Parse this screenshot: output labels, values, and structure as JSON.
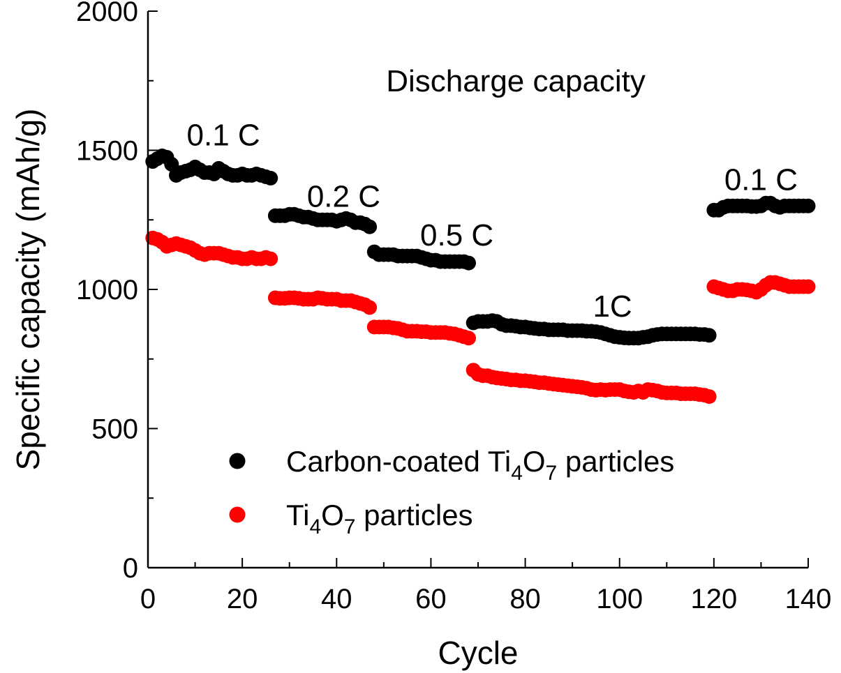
{
  "chart_data": {
    "type": "scatter",
    "title": "",
    "xlabel": "Cycle",
    "ylabel": "Specific capacity (mAh/g)",
    "xlim": [
      0,
      140
    ],
    "ylim": [
      0,
      2000
    ],
    "xticks": [
      0,
      20,
      40,
      60,
      80,
      100,
      120,
      140
    ],
    "yticks": [
      0,
      500,
      1000,
      1500,
      2000
    ],
    "xtick_labels": [
      "0",
      "20",
      "40",
      "60",
      "80",
      "100",
      "120",
      "140"
    ],
    "ytick_labels": [
      "0",
      "500",
      "1000",
      "1500",
      "2000"
    ],
    "grid": false,
    "legend_position": "bottom-left",
    "series": [
      {
        "key": "coated",
        "name_main": "Carbon-coated Ti",
        "name_sub1": "4",
        "name_mid": "O",
        "name_sub2": "7",
        "name_tail": " particles",
        "color": "#000000",
        "points": [
          [
            1,
            1460
          ],
          [
            2,
            1470
          ],
          [
            3,
            1480
          ],
          [
            4,
            1475
          ],
          [
            5,
            1450
          ],
          [
            6,
            1410
          ],
          [
            7,
            1420
          ],
          [
            8,
            1425
          ],
          [
            9,
            1430
          ],
          [
            10,
            1440
          ],
          [
            11,
            1430
          ],
          [
            12,
            1420
          ],
          [
            13,
            1420
          ],
          [
            14,
            1415
          ],
          [
            15,
            1435
          ],
          [
            16,
            1425
          ],
          [
            17,
            1415
          ],
          [
            18,
            1410
          ],
          [
            19,
            1410
          ],
          [
            20,
            1415
          ],
          [
            21,
            1410
          ],
          [
            22,
            1410
          ],
          [
            23,
            1415
          ],
          [
            24,
            1410
          ],
          [
            25,
            1405
          ],
          [
            26,
            1400
          ],
          [
            27,
            1265
          ],
          [
            28,
            1265
          ],
          [
            29,
            1265
          ],
          [
            30,
            1270
          ],
          [
            31,
            1270
          ],
          [
            32,
            1265
          ],
          [
            33,
            1260
          ],
          [
            34,
            1260
          ],
          [
            35,
            1255
          ],
          [
            36,
            1250
          ],
          [
            37,
            1250
          ],
          [
            38,
            1250
          ],
          [
            39,
            1250
          ],
          [
            40,
            1245
          ],
          [
            41,
            1250
          ],
          [
            42,
            1255
          ],
          [
            43,
            1250
          ],
          [
            44,
            1240
          ],
          [
            45,
            1240
          ],
          [
            46,
            1235
          ],
          [
            47,
            1225
          ],
          [
            48,
            1135
          ],
          [
            49,
            1125
          ],
          [
            50,
            1125
          ],
          [
            51,
            1125
          ],
          [
            52,
            1125
          ],
          [
            53,
            1120
          ],
          [
            54,
            1120
          ],
          [
            55,
            1120
          ],
          [
            56,
            1120
          ],
          [
            57,
            1120
          ],
          [
            58,
            1115
          ],
          [
            59,
            1110
          ],
          [
            60,
            1105
          ],
          [
            61,
            1105
          ],
          [
            62,
            1100
          ],
          [
            63,
            1100
          ],
          [
            64,
            1100
          ],
          [
            65,
            1100
          ],
          [
            66,
            1100
          ],
          [
            67,
            1100
          ],
          [
            68,
            1095
          ],
          [
            69,
            880
          ],
          [
            70,
            885
          ],
          [
            71,
            885
          ],
          [
            72,
            885
          ],
          [
            73,
            888
          ],
          [
            74,
            885
          ],
          [
            75,
            875
          ],
          [
            76,
            870
          ],
          [
            77,
            870
          ],
          [
            78,
            868
          ],
          [
            79,
            865
          ],
          [
            80,
            865
          ],
          [
            81,
            862
          ],
          [
            82,
            860
          ],
          [
            83,
            858
          ],
          [
            84,
            858
          ],
          [
            85,
            855
          ],
          [
            86,
            855
          ],
          [
            87,
            855
          ],
          [
            88,
            855
          ],
          [
            89,
            852
          ],
          [
            90,
            852
          ],
          [
            91,
            852
          ],
          [
            92,
            852
          ],
          [
            93,
            850
          ],
          [
            94,
            850
          ],
          [
            95,
            848
          ],
          [
            96,
            845
          ],
          [
            97,
            840
          ],
          [
            98,
            835
          ],
          [
            99,
            830
          ],
          [
            100,
            828
          ],
          [
            101,
            826
          ],
          [
            102,
            825
          ],
          [
            103,
            825
          ],
          [
            104,
            825
          ],
          [
            105,
            828
          ],
          [
            106,
            830
          ],
          [
            107,
            835
          ],
          [
            108,
            838
          ],
          [
            109,
            840
          ],
          [
            110,
            840
          ],
          [
            111,
            840
          ],
          [
            112,
            840
          ],
          [
            113,
            840
          ],
          [
            114,
            840
          ],
          [
            115,
            840
          ],
          [
            116,
            840
          ],
          [
            117,
            838
          ],
          [
            118,
            838
          ],
          [
            119,
            835
          ],
          [
            120,
            1285
          ],
          [
            121,
            1285
          ],
          [
            122,
            1295
          ],
          [
            123,
            1300
          ],
          [
            124,
            1300
          ],
          [
            125,
            1300
          ],
          [
            126,
            1300
          ],
          [
            127,
            1300
          ],
          [
            128,
            1298
          ],
          [
            129,
            1298
          ],
          [
            130,
            1300
          ],
          [
            131,
            1310
          ],
          [
            132,
            1310
          ],
          [
            133,
            1300
          ],
          [
            134,
            1295
          ],
          [
            135,
            1300
          ],
          [
            136,
            1300
          ],
          [
            137,
            1300
          ],
          [
            138,
            1300
          ],
          [
            139,
            1300
          ],
          [
            140,
            1300
          ]
        ]
      },
      {
        "key": "bare",
        "name_main": "Ti",
        "name_sub1": "4",
        "name_mid": "O",
        "name_sub2": "7",
        "name_tail": " particles",
        "color": "#ff0000",
        "points": [
          [
            1,
            1185
          ],
          [
            2,
            1180
          ],
          [
            3,
            1170
          ],
          [
            4,
            1155
          ],
          [
            5,
            1160
          ],
          [
            6,
            1165
          ],
          [
            7,
            1160
          ],
          [
            8,
            1155
          ],
          [
            9,
            1150
          ],
          [
            10,
            1140
          ],
          [
            11,
            1130
          ],
          [
            12,
            1125
          ],
          [
            13,
            1130
          ],
          [
            14,
            1130
          ],
          [
            15,
            1130
          ],
          [
            16,
            1125
          ],
          [
            17,
            1120
          ],
          [
            18,
            1115
          ],
          [
            19,
            1115
          ],
          [
            20,
            1110
          ],
          [
            21,
            1110
          ],
          [
            22,
            1115
          ],
          [
            23,
            1110
          ],
          [
            24,
            1110
          ],
          [
            25,
            1115
          ],
          [
            26,
            1110
          ],
          [
            27,
            970
          ],
          [
            28,
            968
          ],
          [
            29,
            968
          ],
          [
            30,
            970
          ],
          [
            31,
            970
          ],
          [
            32,
            968
          ],
          [
            33,
            965
          ],
          [
            34,
            965
          ],
          [
            35,
            965
          ],
          [
            36,
            970
          ],
          [
            37,
            968
          ],
          [
            38,
            965
          ],
          [
            39,
            965
          ],
          [
            40,
            965
          ],
          [
            41,
            960
          ],
          [
            42,
            960
          ],
          [
            43,
            960
          ],
          [
            44,
            955
          ],
          [
            45,
            950
          ],
          [
            46,
            945
          ],
          [
            47,
            935
          ],
          [
            48,
            865
          ],
          [
            49,
            865
          ],
          [
            50,
            865
          ],
          [
            51,
            865
          ],
          [
            52,
            862
          ],
          [
            53,
            860
          ],
          [
            54,
            855
          ],
          [
            55,
            850
          ],
          [
            56,
            850
          ],
          [
            57,
            850
          ],
          [
            58,
            848
          ],
          [
            59,
            848
          ],
          [
            60,
            845
          ],
          [
            61,
            845
          ],
          [
            62,
            845
          ],
          [
            63,
            845
          ],
          [
            64,
            842
          ],
          [
            65,
            840
          ],
          [
            66,
            835
          ],
          [
            67,
            830
          ],
          [
            68,
            825
          ],
          [
            69,
            710
          ],
          [
            70,
            695
          ],
          [
            71,
            690
          ],
          [
            72,
            690
          ],
          [
            73,
            685
          ],
          [
            74,
            682
          ],
          [
            75,
            680
          ],
          [
            76,
            678
          ],
          [
            77,
            675
          ],
          [
            78,
            675
          ],
          [
            79,
            672
          ],
          [
            80,
            672
          ],
          [
            81,
            670
          ],
          [
            82,
            668
          ],
          [
            83,
            665
          ],
          [
            84,
            665
          ],
          [
            85,
            662
          ],
          [
            86,
            660
          ],
          [
            87,
            658
          ],
          [
            88,
            656
          ],
          [
            89,
            654
          ],
          [
            90,
            652
          ],
          [
            91,
            650
          ],
          [
            92,
            648
          ],
          [
            93,
            645
          ],
          [
            94,
            640
          ],
          [
            95,
            638
          ],
          [
            96,
            640
          ],
          [
            97,
            638
          ],
          [
            98,
            640
          ],
          [
            99,
            640
          ],
          [
            100,
            640
          ],
          [
            101,
            635
          ],
          [
            102,
            632
          ],
          [
            103,
            630
          ],
          [
            104,
            635
          ],
          [
            105,
            630
          ],
          [
            106,
            640
          ],
          [
            107,
            638
          ],
          [
            108,
            635
          ],
          [
            109,
            630
          ],
          [
            110,
            628
          ],
          [
            111,
            628
          ],
          [
            112,
            628
          ],
          [
            113,
            625
          ],
          [
            114,
            625
          ],
          [
            115,
            625
          ],
          [
            116,
            625
          ],
          [
            117,
            622
          ],
          [
            118,
            620
          ],
          [
            119,
            615
          ],
          [
            120,
            1010
          ],
          [
            121,
            1005
          ],
          [
            122,
            1000
          ],
          [
            123,
            995
          ],
          [
            124,
            995
          ],
          [
            125,
            1000
          ],
          [
            126,
            1000
          ],
          [
            127,
            998
          ],
          [
            128,
            995
          ],
          [
            129,
            990
          ],
          [
            130,
            1000
          ],
          [
            131,
            1015
          ],
          [
            132,
            1025
          ],
          [
            133,
            1025
          ],
          [
            134,
            1020
          ],
          [
            135,
            1015
          ],
          [
            136,
            1010
          ],
          [
            137,
            1010
          ],
          [
            138,
            1010
          ],
          [
            139,
            1010
          ],
          [
            140,
            1010
          ]
        ]
      }
    ],
    "annotations": [
      {
        "text": "Discharge capacity",
        "x": 78,
        "y": 1750,
        "anchor": "middle"
      },
      {
        "text": "0.1 C",
        "x": 16,
        "y": 1555,
        "anchor": "middle"
      },
      {
        "text": "0.2 C",
        "x": 41.5,
        "y": 1335,
        "anchor": "middle"
      },
      {
        "text": "0.5 C",
        "x": 65.5,
        "y": 1195,
        "anchor": "middle"
      },
      {
        "text": "1C",
        "x": 98.5,
        "y": 940,
        "anchor": "middle"
      },
      {
        "text": "0.1 C",
        "x": 130,
        "y": 1395,
        "anchor": "middle"
      }
    ]
  }
}
